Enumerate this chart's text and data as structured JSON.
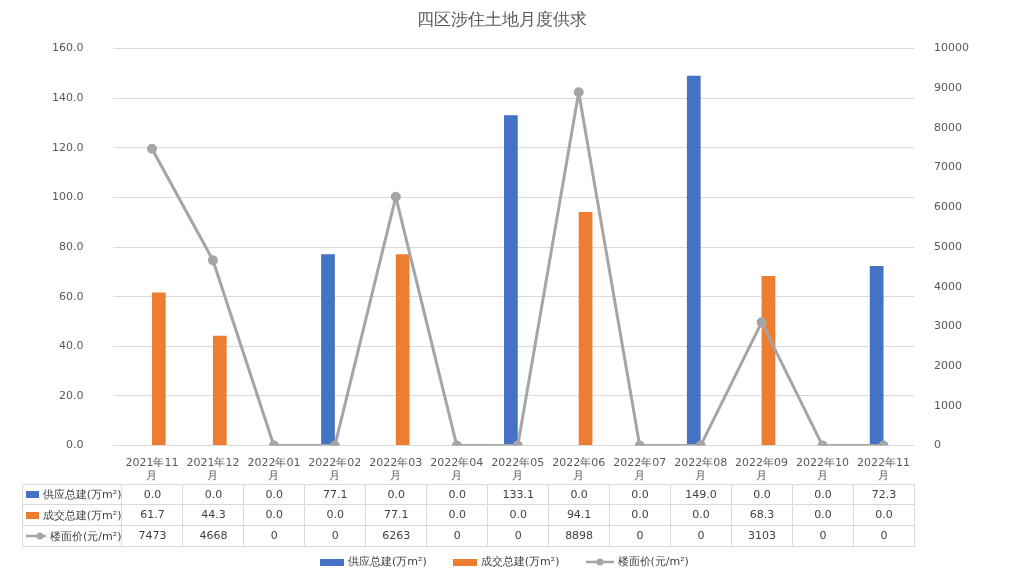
{
  "chart_data": {
    "type": "bar",
    "title": "四区涉住土地月度供求",
    "categories": [
      "2021年11月",
      "2021年12月",
      "2022年01月",
      "2022年02月",
      "2022年03月",
      "2022年04月",
      "2022年05月",
      "2022年06月",
      "2022年07月",
      "2022年08月",
      "2022年09月",
      "2022年10月",
      "2022年11月"
    ],
    "series": [
      {
        "name": "供应总建(万m²)",
        "color": "#4472c4",
        "values": [
          0,
          0,
          0,
          77.1,
          0,
          0,
          133.1,
          0,
          0,
          149.0,
          0,
          0,
          72.3
        ],
        "value_labels": [
          "0.0",
          "0.0",
          "0.0",
          "77.1",
          "0.0",
          "0.0",
          "133.1",
          "0.0",
          "0.0",
          "149.0",
          "0.0",
          "0.0",
          "72.3"
        ]
      },
      {
        "name": "成交总建(万m²)",
        "color": "#ed7d31",
        "values": [
          61.7,
          44.3,
          0,
          0,
          77.1,
          0,
          0,
          94.1,
          0,
          0,
          68.3,
          0,
          0
        ],
        "value_labels": [
          "61.7",
          "44.3",
          "0.0",
          "0.0",
          "77.1",
          "0.0",
          "0.0",
          "94.1",
          "0.0",
          "0.0",
          "68.3",
          "0.0",
          "0.0"
        ]
      },
      {
        "name": "楼面价(元/m²)",
        "type": "line",
        "axis": "y2",
        "color": "#a5a5a5",
        "marker": "circle",
        "values": [
          7473,
          4668,
          0,
          0,
          6263,
          0,
          0,
          8898,
          0,
          0,
          3103,
          0,
          0
        ],
        "value_labels": [
          "7473",
          "4668",
          "0",
          "0",
          "6263",
          "0",
          "0",
          "8898",
          "0",
          "0",
          "3103",
          "0",
          "0"
        ]
      }
    ],
    "ylim": [
      0,
      160
    ],
    "yticks": [
      {
        "value": 0,
        "label": "0.0"
      },
      {
        "value": 20,
        "label": "20.0"
      },
      {
        "value": 40,
        "label": "40.0"
      },
      {
        "value": 60,
        "label": "60.0"
      },
      {
        "value": 80,
        "label": "80.0"
      },
      {
        "value": 100,
        "label": "100.0"
      },
      {
        "value": 120,
        "label": "120.0"
      },
      {
        "value": 140,
        "label": "140.0"
      },
      {
        "value": 160,
        "label": "160.0"
      }
    ],
    "y2lim": [
      0,
      10000
    ],
    "y2ticks": [
      0,
      1000,
      2000,
      3000,
      4000,
      5000,
      6000,
      7000,
      8000,
      9000,
      10000
    ],
    "grid": "y",
    "legend": "bottom"
  }
}
